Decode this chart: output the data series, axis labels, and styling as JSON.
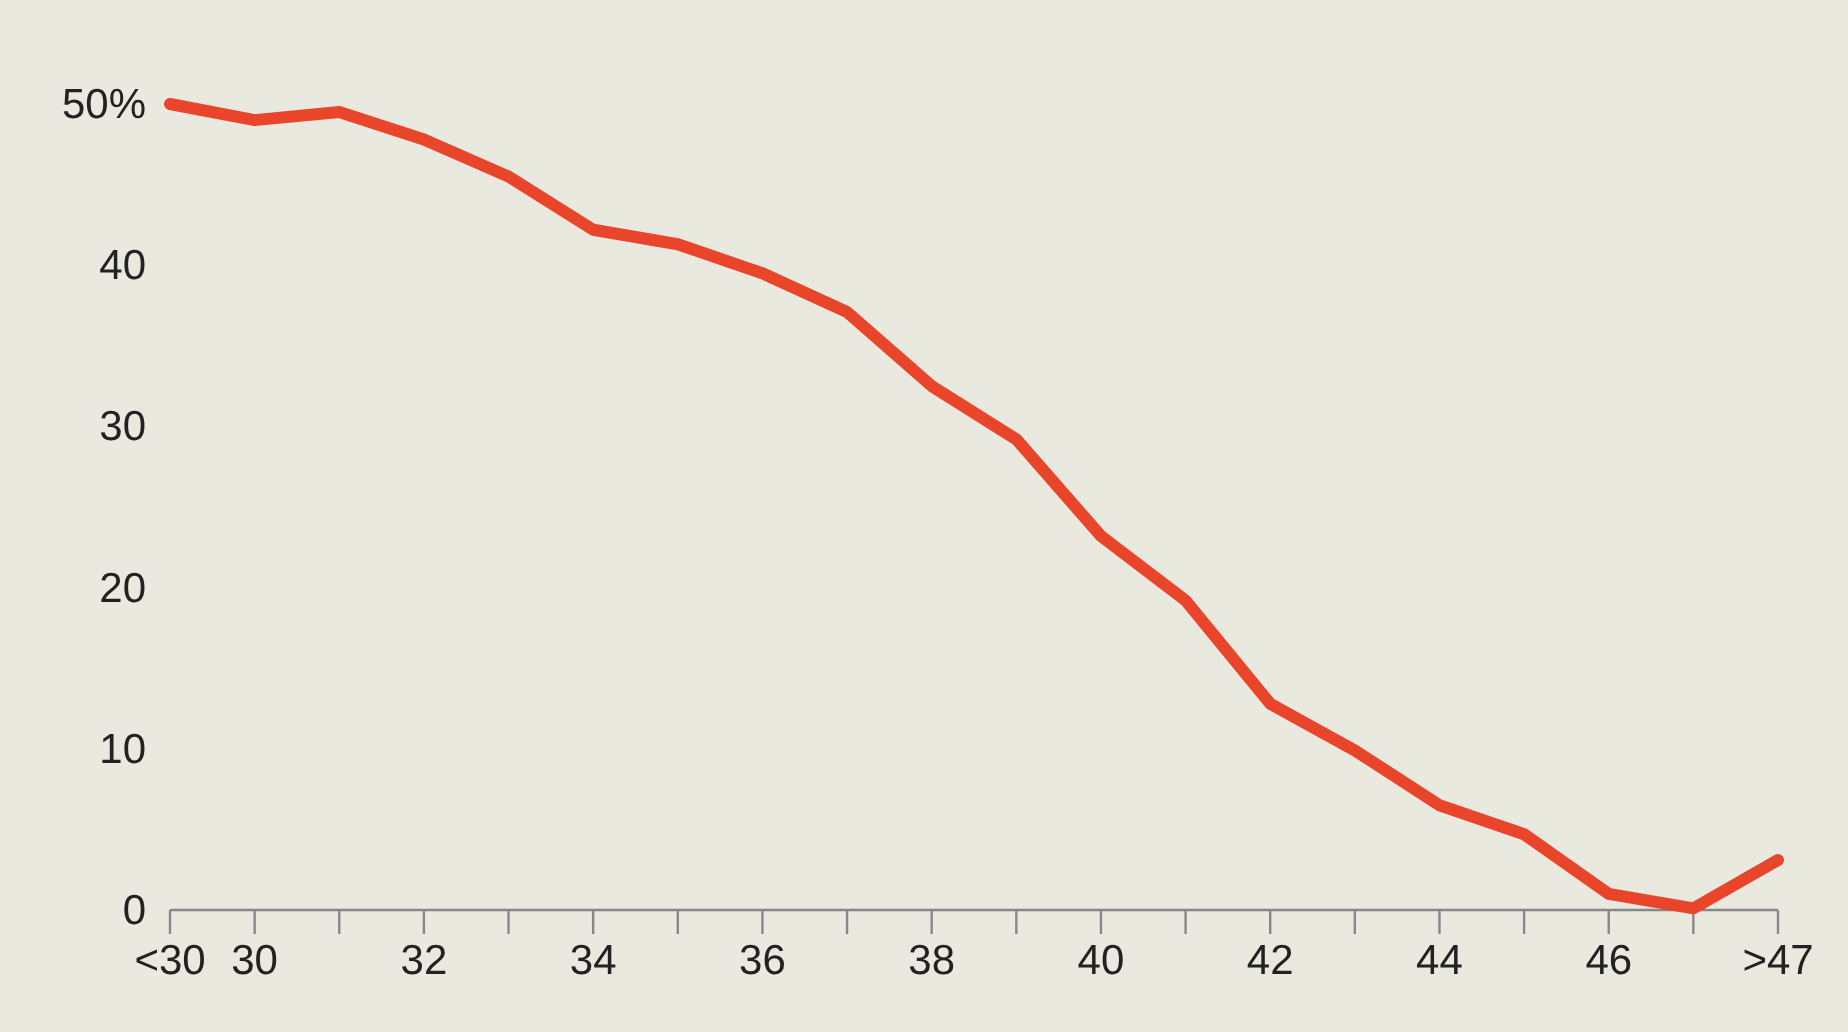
{
  "chart_data": {
    "type": "line",
    "categories": [
      "<30",
      "30",
      null,
      "32",
      null,
      "34",
      null,
      "36",
      null,
      "38",
      null,
      "40",
      null,
      "42",
      null,
      "44",
      null,
      "46",
      null,
      ">47"
    ],
    "series": [
      {
        "color": "#e8452a",
        "values": [
          50.0,
          49.0,
          49.5,
          47.8,
          45.5,
          42.2,
          41.3,
          39.5,
          37.1,
          32.5,
          29.2,
          23.2,
          19.2,
          12.8,
          9.9,
          6.5,
          4.7,
          1.0,
          0.1,
          3.1
        ]
      }
    ],
    "ylim": [
      0,
      50
    ],
    "yticks": [
      0,
      10,
      20,
      30,
      40,
      {
        "value": 50,
        "label": "50%"
      }
    ],
    "grid": false,
    "marker": "none",
    "line_style": "solid"
  }
}
